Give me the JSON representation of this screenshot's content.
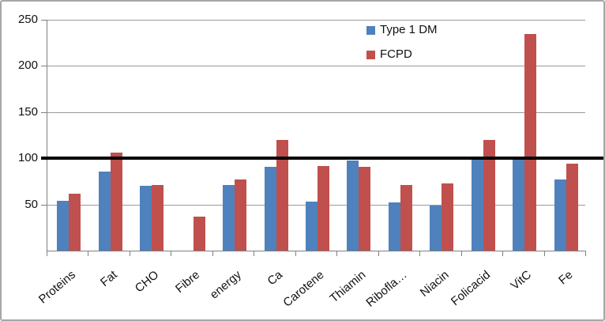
{
  "chart_data": {
    "type": "bar",
    "title": "",
    "xlabel": "",
    "ylabel": "",
    "categories": [
      "Proteins",
      "Fat",
      "CHO",
      "Fibre",
      "energy",
      "Ca",
      "Carotene",
      "Thiamin",
      "Ribofla…",
      "Niacin",
      "Folicacid",
      "VitC",
      "Fe"
    ],
    "series": [
      {
        "name": "Type 1 DM",
        "color": "#4f81bd",
        "values": [
          54,
          86,
          70,
          0,
          71,
          91,
          53,
          98,
          52,
          49,
          102,
          101,
          77
        ]
      },
      {
        "name": "FCPD",
        "color": "#c0504d",
        "values": [
          62,
          106,
          71,
          37,
          77,
          120,
          92,
          91,
          71,
          73,
          120,
          235,
          94
        ]
      }
    ],
    "ylim": [
      0,
      250
    ],
    "yticks": [
      250,
      200,
      150,
      100,
      50
    ],
    "grid": true,
    "legend_position": "inside-top-center",
    "reference_line": {
      "value": 100,
      "color": "#000000"
    }
  }
}
